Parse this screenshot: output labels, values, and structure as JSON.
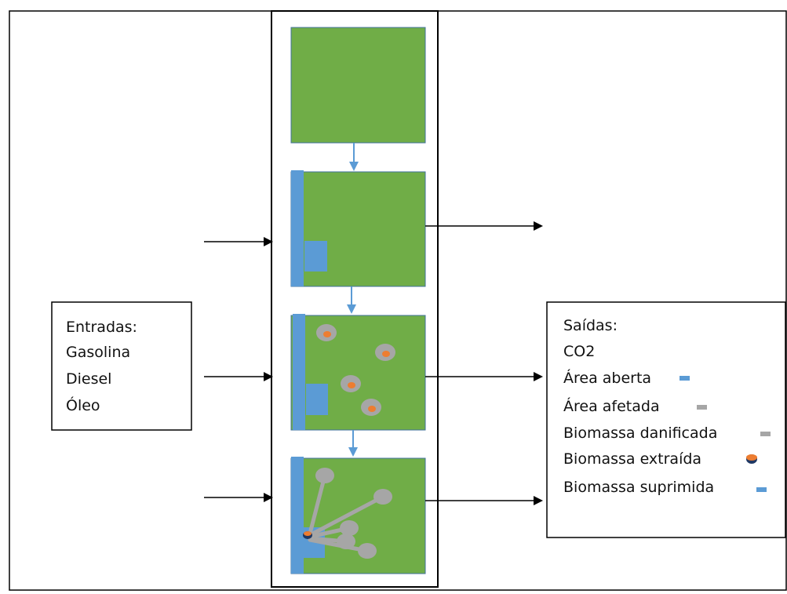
{
  "inputs_box": {
    "title": "Entradas:",
    "items": [
      "Gasolina",
      "Diesel",
      "Óleo"
    ]
  },
  "outputs_box": {
    "title": "Saídas:",
    "items": [
      {
        "label": "CO2",
        "marker": "none"
      },
      {
        "label": "Área aberta",
        "marker": "blue-bar"
      },
      {
        "label": "Área afetada",
        "marker": "gray-bar"
      },
      {
        "label": "Biomassa danificada",
        "marker": "gray-bar"
      },
      {
        "label": "Biomassa extraída",
        "marker": "orange-disc"
      },
      {
        "label": "Biomassa suprimida",
        "marker": "blue-bar"
      }
    ]
  },
  "colors": {
    "panel_green": "#70AD47",
    "blue": "#5B9BD5",
    "gray": "#A6A6A6",
    "orange": "#ED7D31",
    "line": "#000000"
  }
}
